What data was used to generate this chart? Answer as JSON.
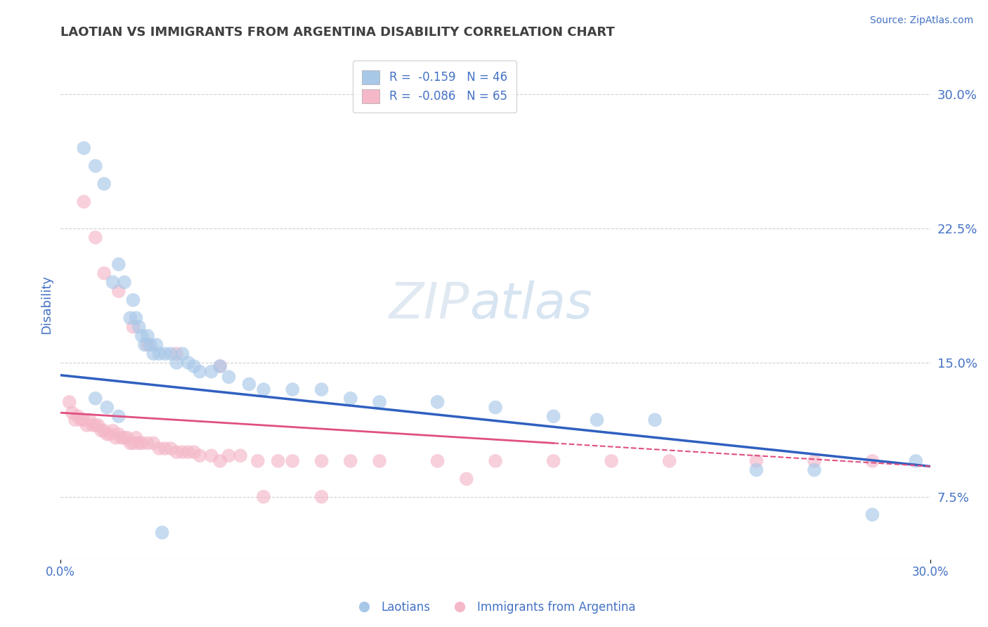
{
  "title": "LAOTIAN VS IMMIGRANTS FROM ARGENTINA DISABILITY CORRELATION CHART",
  "source": "Source: ZipAtlas.com",
  "ylabel": "Disability",
  "xlim": [
    0.0,
    0.3
  ],
  "ylim": [
    0.04,
    0.325
  ],
  "yticks_right": [
    0.075,
    0.15,
    0.225,
    0.3
  ],
  "yticklabels_right": [
    "7.5%",
    "15.0%",
    "22.5%",
    "30.0%"
  ],
  "legend_r1": "R =  -0.159   N = 46",
  "legend_r2": "R =  -0.086   N = 65",
  "color_blue": "#a8c8e8",
  "color_pink": "#f4b8c8",
  "color_blue_line": "#3060c0",
  "color_pink_line": "#e05080",
  "title_color": "#404040",
  "axis_label_color": "#4472C4",
  "background_color": "#ffffff",
  "laotian_x": [
    0.008,
    0.012,
    0.015,
    0.018,
    0.02,
    0.022,
    0.024,
    0.025,
    0.026,
    0.027,
    0.028,
    0.029,
    0.03,
    0.031,
    0.032,
    0.033,
    0.034,
    0.036,
    0.038,
    0.04,
    0.042,
    0.044,
    0.046,
    0.048,
    0.052,
    0.055,
    0.058,
    0.065,
    0.07,
    0.08,
    0.09,
    0.1,
    0.11,
    0.13,
    0.15,
    0.17,
    0.185,
    0.205,
    0.24,
    0.26,
    0.28,
    0.295,
    0.012,
    0.016,
    0.02,
    0.035
  ],
  "laotian_y": [
    0.27,
    0.26,
    0.25,
    0.195,
    0.205,
    0.195,
    0.175,
    0.185,
    0.175,
    0.17,
    0.165,
    0.16,
    0.165,
    0.16,
    0.155,
    0.16,
    0.155,
    0.155,
    0.155,
    0.15,
    0.155,
    0.15,
    0.148,
    0.145,
    0.145,
    0.148,
    0.142,
    0.138,
    0.135,
    0.135,
    0.135,
    0.13,
    0.128,
    0.128,
    0.125,
    0.12,
    0.118,
    0.118,
    0.09,
    0.09,
    0.065,
    0.095,
    0.13,
    0.125,
    0.12,
    0.055
  ],
  "argentina_x": [
    0.003,
    0.004,
    0.005,
    0.006,
    0.007,
    0.008,
    0.009,
    0.01,
    0.011,
    0.012,
    0.013,
    0.014,
    0.015,
    0.016,
    0.017,
    0.018,
    0.019,
    0.02,
    0.021,
    0.022,
    0.023,
    0.024,
    0.025,
    0.026,
    0.027,
    0.028,
    0.03,
    0.032,
    0.034,
    0.036,
    0.038,
    0.04,
    0.042,
    0.044,
    0.046,
    0.048,
    0.052,
    0.055,
    0.058,
    0.062,
    0.068,
    0.075,
    0.08,
    0.09,
    0.1,
    0.11,
    0.13,
    0.15,
    0.17,
    0.19,
    0.21,
    0.24,
    0.26,
    0.28,
    0.008,
    0.012,
    0.015,
    0.02,
    0.025,
    0.03,
    0.04,
    0.055,
    0.07,
    0.09,
    0.14
  ],
  "argentina_y": [
    0.128,
    0.122,
    0.118,
    0.12,
    0.118,
    0.118,
    0.115,
    0.118,
    0.115,
    0.115,
    0.115,
    0.112,
    0.112,
    0.11,
    0.11,
    0.112,
    0.108,
    0.11,
    0.108,
    0.108,
    0.108,
    0.105,
    0.105,
    0.108,
    0.105,
    0.105,
    0.105,
    0.105,
    0.102,
    0.102,
    0.102,
    0.1,
    0.1,
    0.1,
    0.1,
    0.098,
    0.098,
    0.095,
    0.098,
    0.098,
    0.095,
    0.095,
    0.095,
    0.095,
    0.095,
    0.095,
    0.095,
    0.095,
    0.095,
    0.095,
    0.095,
    0.095,
    0.095,
    0.095,
    0.24,
    0.22,
    0.2,
    0.19,
    0.17,
    0.16,
    0.155,
    0.148,
    0.075,
    0.075,
    0.085
  ],
  "grid_color": "#d0d0d0",
  "regression_blue_x0": 0.0,
  "regression_blue_x1": 0.3,
  "regression_blue_y0": 0.143,
  "regression_blue_y1": 0.092,
  "regression_pink_solid_x0": 0.0,
  "regression_pink_solid_x1": 0.17,
  "regression_pink_dashed_x0": 0.17,
  "regression_pink_dashed_x1": 0.3,
  "regression_pink_y0": 0.122,
  "regression_pink_y1": 0.092
}
